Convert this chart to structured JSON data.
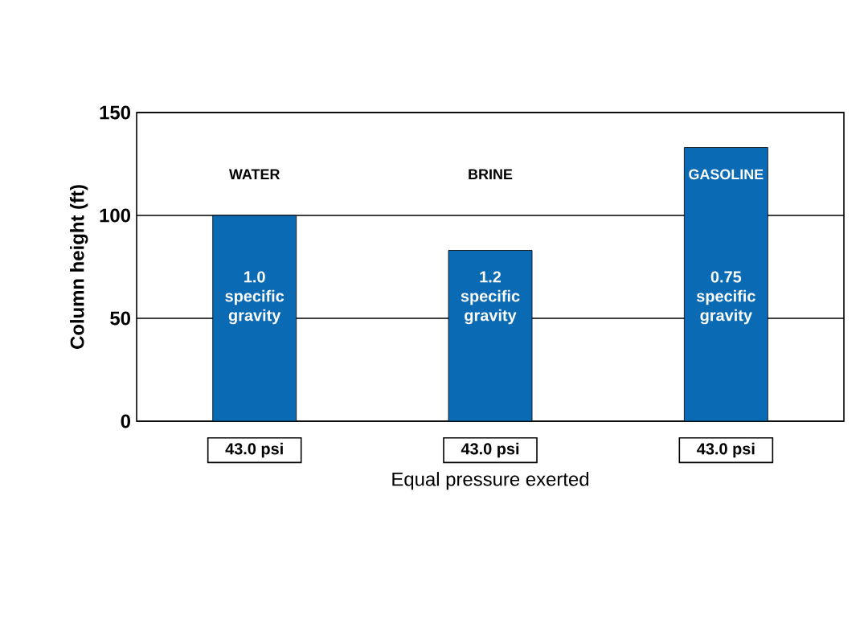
{
  "chart_data": {
    "type": "bar",
    "xlabel": "Equal pressure exerted",
    "ylabel": "Column height (ft)",
    "categories": [
      "WATER",
      "BRINE",
      "GASOLINE"
    ],
    "values": [
      100,
      83,
      133
    ],
    "color": "#0b6ab4",
    "ylim": [
      0,
      150
    ],
    "yticks": [
      0,
      50,
      100,
      150
    ],
    "grid": "y",
    "annotations": [
      "1.0 specific gravity",
      "1.2 specific gravity",
      "0.75 specific gravity",
      "43.0 psi",
      "43.0 psi",
      "43.0 psi"
    ]
  }
}
